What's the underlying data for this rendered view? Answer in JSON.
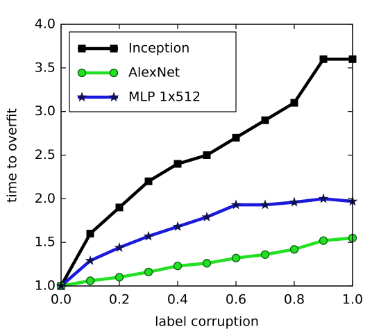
{
  "chart_data": {
    "type": "line",
    "xlabel": "label corruption",
    "ylabel": "time to overfit",
    "x": [
      0.0,
      0.1,
      0.2,
      0.3,
      0.4,
      0.5,
      0.6,
      0.7,
      0.8,
      0.9,
      1.0
    ],
    "series": [
      {
        "name": "Inception",
        "color": "#000000",
        "marker": "square",
        "values": [
          1.0,
          1.6,
          1.9,
          2.2,
          2.4,
          2.5,
          2.7,
          2.9,
          3.1,
          3.6,
          3.6
        ]
      },
      {
        "name": "AlexNet",
        "color": "#22e022",
        "marker": "circle",
        "values": [
          1.0,
          1.06,
          1.1,
          1.16,
          1.23,
          1.26,
          1.32,
          1.36,
          1.42,
          1.52,
          1.55
        ]
      },
      {
        "name": "MLP 1x512",
        "color": "#1a1adc",
        "marker": "star",
        "values": [
          1.0,
          1.29,
          1.44,
          1.57,
          1.68,
          1.79,
          1.93,
          1.93,
          1.96,
          2.0,
          1.97
        ]
      }
    ],
    "xlim": [
      0,
      1
    ],
    "ylim": [
      1,
      4
    ],
    "xticks": [
      {
        "value": 0,
        "label": "0.0"
      },
      {
        "value": 0.2,
        "label": "0.2"
      },
      {
        "value": 0.4,
        "label": "0.4"
      },
      {
        "value": 0.6,
        "label": "0.6"
      },
      {
        "value": 0.8,
        "label": "0.8"
      },
      {
        "value": 1,
        "label": "1.0"
      }
    ],
    "yticks": [
      {
        "value": 1,
        "label": "1.0"
      },
      {
        "value": 1.5,
        "label": "1.5"
      },
      {
        "value": 2,
        "label": "2.0"
      },
      {
        "value": 2.5,
        "label": "2.5"
      },
      {
        "value": 3,
        "label": "3.0"
      },
      {
        "value": 3.5,
        "label": "3.5"
      },
      {
        "value": 4,
        "label": "4.0"
      }
    ],
    "legend": "upper left",
    "grid": false
  }
}
